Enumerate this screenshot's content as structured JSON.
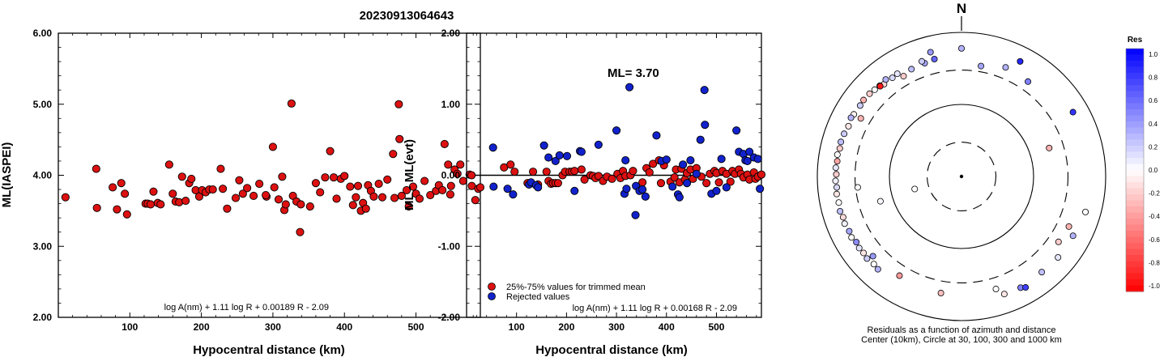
{
  "page_title": "20230913064643",
  "chart_data": [
    {
      "type": "scatter",
      "ylabel": "ML(IASPEI)",
      "xlabel": "Hypocentral distance (km)",
      "xlim": [
        0,
        590
      ],
      "ylim": [
        2.0,
        6.0
      ],
      "x_ticks": [
        100,
        200,
        300,
        400,
        500
      ],
      "y_ticks": [
        "2.00",
        "3.00",
        "4.00",
        "5.00",
        "6.00"
      ],
      "formula": "log A(nm) + 1.11 log R + 0.00189 R - 2.09",
      "marker_color": "#dd1111",
      "points": [
        [
          10,
          3.69
        ],
        [
          53,
          4.09
        ],
        [
          54,
          3.54
        ],
        [
          76,
          3.83
        ],
        [
          82,
          3.52
        ],
        [
          88,
          3.89
        ],
        [
          93,
          3.74
        ],
        [
          96,
          3.45
        ],
        [
          122,
          3.6
        ],
        [
          125,
          3.6
        ],
        [
          129,
          3.59
        ],
        [
          133,
          3.77
        ],
        [
          139,
          3.61
        ],
        [
          143,
          3.59
        ],
        [
          155,
          4.15
        ],
        [
          160,
          3.74
        ],
        [
          164,
          3.63
        ],
        [
          169,
          3.62
        ],
        [
          173,
          3.98
        ],
        [
          178,
          3.64
        ],
        [
          183,
          3.89
        ],
        [
          186,
          3.95
        ],
        [
          192,
          3.79
        ],
        [
          197,
          3.7
        ],
        [
          201,
          3.79
        ],
        [
          206,
          3.76
        ],
        [
          211,
          3.8
        ],
        [
          216,
          3.8
        ],
        [
          227,
          4.09
        ],
        [
          230,
          3.81
        ],
        [
          236,
          3.53
        ],
        [
          248,
          3.68
        ],
        [
          253,
          3.93
        ],
        [
          258,
          3.74
        ],
        [
          264,
          3.82
        ],
        [
          273,
          3.71
        ],
        [
          281,
          3.88
        ],
        [
          291,
          3.7
        ],
        [
          300,
          4.4
        ],
        [
          302,
          3.83
        ],
        [
          308,
          3.66
        ],
        [
          313,
          3.98
        ],
        [
          316,
          3.51
        ],
        [
          318,
          3.59
        ],
        [
          326,
          5.01
        ],
        [
          328,
          3.71
        ],
        [
          333,
          3.63
        ],
        [
          338,
          3.2
        ],
        [
          339,
          3.59
        ],
        [
          352,
          3.56
        ],
        [
          360,
          3.89
        ],
        [
          366,
          3.76
        ],
        [
          373,
          3.97
        ],
        [
          380,
          4.34
        ],
        [
          385,
          3.97
        ],
        [
          389,
          3.67
        ],
        [
          395,
          3.95
        ],
        [
          400,
          3.99
        ],
        [
          408,
          3.84
        ],
        [
          416,
          3.69
        ],
        [
          419,
          3.85
        ],
        [
          423,
          3.5
        ],
        [
          426,
          3.61
        ],
        [
          430,
          3.53
        ],
        [
          433,
          3.86
        ],
        [
          437,
          3.78
        ],
        [
          441,
          3.7
        ],
        [
          448,
          3.88
        ],
        [
          453,
          3.69
        ],
        [
          460,
          3.94
        ],
        [
          468,
          4.3
        ],
        [
          470,
          3.68
        ],
        [
          476,
          5.0
        ],
        [
          477,
          4.51
        ],
        [
          480,
          3.71
        ],
        [
          487,
          3.79
        ],
        [
          490,
          3.56
        ],
        [
          496,
          3.84
        ],
        [
          500,
          3.74
        ],
        [
          505,
          3.67
        ],
        [
          512,
          3.92
        ],
        [
          520,
          3.72
        ],
        [
          528,
          3.78
        ],
        [
          532,
          3.86
        ],
        [
          537,
          3.79
        ],
        [
          540,
          4.44
        ],
        [
          545,
          4.15
        ],
        [
          549,
          3.85
        ],
        [
          554,
          4.08
        ],
        [
          558,
          4.02
        ],
        [
          562,
          4.15
        ],
        [
          566,
          3.92
        ],
        [
          575,
          4.01
        ],
        [
          578,
          3.85
        ],
        [
          583,
          3.65
        ],
        [
          587,
          3.81
        ],
        [
          590,
          3.83
        ],
        [
          548,
          3.73
        ],
        [
          412,
          3.58
        ],
        [
          290,
          3.72
        ]
      ]
    },
    {
      "type": "scatter",
      "ylabel": "ML - ML(evt)",
      "xlabel": "Hypocentral distance (km)",
      "xlim": [
        0,
        590
      ],
      "ylim": [
        -2.0,
        2.0
      ],
      "x_ticks": [
        100,
        200,
        300,
        400,
        500
      ],
      "y_ticks": [
        "-2.00",
        "-1.00",
        "0.00",
        "1.00",
        "2.00"
      ],
      "annotation": "ML= 3.70",
      "legend": [
        "25%-75% values for trimmed mean",
        "Rejected values"
      ],
      "formula": "log A(nm) + 1.11 log R + 0.00168 R - 2.09",
      "zero_line": 0.0,
      "series": [
        {
          "name": "25%-75% values for trimmed mean",
          "color": "#dd1111",
          "points": [
            [
              10,
              0.0
            ],
            [
              75,
              0.11
            ],
            [
              88,
              0.15
            ],
            [
              96,
              0.05
            ],
            [
              122,
              -0.11
            ],
            [
              133,
              0.05
            ],
            [
              143,
              -0.13
            ],
            [
              160,
              0.05
            ],
            [
              164,
              -0.08
            ],
            [
              169,
              -0.12
            ],
            [
              173,
              -0.11
            ],
            [
              178,
              -0.11
            ],
            [
              183,
              -0.11
            ],
            [
              192,
              0.0
            ],
            [
              197,
              0.05
            ],
            [
              206,
              0.05
            ],
            [
              211,
              0.05
            ],
            [
              216,
              0.06
            ],
            [
              230,
              0.08
            ],
            [
              236,
              -0.06
            ],
            [
              248,
              0.0
            ],
            [
              253,
              -0.01
            ],
            [
              258,
              -0.04
            ],
            [
              264,
              -0.01
            ],
            [
              273,
              -0.08
            ],
            [
              281,
              -0.02
            ],
            [
              291,
              -0.05
            ],
            [
              302,
              0.02
            ],
            [
              308,
              -0.04
            ],
            [
              313,
              0.06
            ],
            [
              318,
              -0.01
            ],
            [
              328,
              0.0
            ],
            [
              333,
              0.06
            ],
            [
              352,
              -0.1
            ],
            [
              360,
              0.1
            ],
            [
              366,
              0.04
            ],
            [
              373,
              0.16
            ],
            [
              385,
              0.21
            ],
            [
              389,
              -0.11
            ],
            [
              395,
              0.14
            ],
            [
              408,
              -0.09
            ],
            [
              416,
              -0.03
            ],
            [
              419,
              0.08
            ],
            [
              426,
              -0.1
            ],
            [
              430,
              0.09
            ],
            [
              437,
              -0.06
            ],
            [
              441,
              0.03
            ],
            [
              448,
              0.08
            ],
            [
              453,
              -0.05
            ],
            [
              460,
              0.1
            ],
            [
              470,
              -0.02
            ],
            [
              480,
              -0.11
            ],
            [
              487,
              0.02
            ],
            [
              496,
              0.06
            ],
            [
              500,
              0.03
            ],
            [
              505,
              -0.1
            ],
            [
              512,
              0.06
            ],
            [
              520,
              0.02
            ],
            [
              528,
              -0.09
            ],
            [
              532,
              0.06
            ],
            [
              537,
              0.02
            ],
            [
              545,
              0.08
            ],
            [
              549,
              0.02
            ],
            [
              554,
              -0.03
            ],
            [
              562,
              0.01
            ],
            [
              566,
              -0.06
            ],
            [
              575,
              0.04
            ],
            [
              578,
              -0.05
            ],
            [
              583,
              -0.02
            ],
            [
              590,
              0.01
            ]
          ]
        },
        {
          "name": "Rejected values",
          "color": "#1122cc",
          "points": [
            [
              53,
              0.39
            ],
            [
              54,
              -0.16
            ],
            [
              82,
              -0.19
            ],
            [
              93,
              -0.27
            ],
            [
              125,
              -0.13
            ],
            [
              129,
              -0.1
            ],
            [
              139,
              -0.14
            ],
            [
              143,
              -0.17
            ],
            [
              155,
              0.42
            ],
            [
              164,
              0.25
            ],
            [
              178,
              0.2
            ],
            [
              186,
              0.28
            ],
            [
              201,
              0.27
            ],
            [
              216,
              -0.22
            ],
            [
              227,
              0.34
            ],
            [
              230,
              0.33
            ],
            [
              264,
              0.43
            ],
            [
              300,
              0.63
            ],
            [
              316,
              -0.26
            ],
            [
              318,
              0.21
            ],
            [
              320,
              -0.19
            ],
            [
              326,
              1.24
            ],
            [
              338,
              -0.56
            ],
            [
              339,
              -0.15
            ],
            [
              346,
              -0.22
            ],
            [
              352,
              -0.2
            ],
            [
              358,
              -0.3
            ],
            [
              380,
              0.56
            ],
            [
              390,
              0.2
            ],
            [
              400,
              0.22
            ],
            [
              412,
              -0.16
            ],
            [
              423,
              -0.27
            ],
            [
              426,
              -0.31
            ],
            [
              433,
              0.15
            ],
            [
              441,
              -0.11
            ],
            [
              448,
              0.21
            ],
            [
              460,
              0.02
            ],
            [
              468,
              0.5
            ],
            [
              476,
              1.2
            ],
            [
              477,
              0.71
            ],
            [
              490,
              -0.26
            ],
            [
              510,
              0.23
            ],
            [
              540,
              0.63
            ],
            [
              545,
              0.33
            ],
            [
              554,
              0.3
            ],
            [
              558,
              0.21
            ],
            [
              562,
              0.2
            ],
            [
              566,
              0.33
            ],
            [
              575,
              0.25
            ],
            [
              583,
              0.23
            ],
            [
              587,
              -0.19
            ],
            [
              500,
              -0.22
            ],
            [
              520,
              -0.17
            ]
          ]
        }
      ]
    },
    {
      "type": "polar-scatter",
      "north_label": "N",
      "caption_line1": "Residuals as a function of azimuth and distance",
      "caption_line2": "Center (10km), Circle at 30, 100, 300 and 1000 km",
      "circles_km": [
        30,
        100,
        300,
        1000
      ],
      "colorbar": {
        "title": "Res",
        "ticks": [
          "1.0",
          "0.8",
          "0.6",
          "0.4",
          "0.2",
          "0.0",
          "-0.2",
          "-0.4",
          "-0.6",
          "-0.8",
          "-1.0"
        ],
        "max_color": "#0000ff",
        "zero_color": "#ffffff",
        "min_color": "#ff0000"
      },
      "points": [
        [
          255,
          47,
          0.0
        ],
        [
          253,
          150,
          0.03
        ],
        [
          72,
          190,
          -0.3
        ],
        [
          10,
          360,
          0.35
        ],
        [
          35,
          405,
          0.5
        ],
        [
          22,
          430,
          0.3
        ],
        [
          335,
          440,
          0.25
        ],
        [
          342,
          450,
          0.35
        ],
        [
          347,
          470,
          0.6
        ],
        [
          341,
          490,
          0.2
        ],
        [
          328,
          480,
          0.1
        ],
        [
          320,
          470,
          -0.15
        ],
        [
          318,
          495,
          0.15
        ],
        [
          322,
          510,
          0.3
        ],
        [
          315,
          505,
          0.0
        ],
        [
          312,
          520,
          -0.2
        ],
        [
          308,
          530,
          -0.3
        ],
        [
          305,
          520,
          0.2
        ],
        [
          300,
          530,
          -0.05
        ],
        [
          298,
          545,
          0.3
        ],
        [
          294,
          520,
          -0.1
        ],
        [
          290,
          540,
          0.2
        ],
        [
          286,
          550,
          0.25
        ],
        [
          283,
          540,
          -0.2
        ],
        [
          280,
          560,
          0.0
        ],
        [
          277,
          545,
          -0.35
        ],
        [
          274,
          560,
          0.1
        ],
        [
          271,
          545,
          -0.2
        ],
        [
          268,
          560,
          0.05
        ],
        [
          265,
          545,
          0.15
        ],
        [
          262,
          560,
          -0.1
        ],
        [
          258,
          550,
          0.0
        ],
        [
          254,
          565,
          0.25
        ],
        [
          251,
          545,
          -0.15
        ],
        [
          248,
          560,
          0.05
        ],
        [
          244,
          540,
          0.35
        ],
        [
          241,
          555,
          0.0
        ],
        [
          238,
          525,
          0.45
        ],
        [
          235,
          540,
          0.1
        ],
        [
          232,
          530,
          -0.1
        ],
        [
          229,
          545,
          0.2
        ],
        [
          225,
          525,
          0.0
        ],
        [
          222,
          540,
          0.3
        ],
        [
          346,
          600,
          0.4
        ],
        [
          360,
          600,
          0.3
        ],
        [
          27,
          620,
          0.85
        ],
        [
          60,
          610,
          0.8
        ],
        [
          106,
          615,
          0.0
        ],
        [
          118,
          565,
          0.3
        ],
        [
          130,
          560,
          0.1
        ],
        [
          140,
          540,
          0.25
        ],
        [
          152,
          560,
          0.5
        ],
        [
          160,
          545,
          -0.1
        ],
        [
          163,
          430,
          0.0
        ],
        [
          190,
          440,
          -0.25
        ],
        [
          212,
          420,
          -0.4
        ],
        [
          228,
          450,
          0.4
        ],
        [
          300,
          410,
          -0.3
        ],
        [
          330,
          405,
          -0.2
        ],
        [
          150,
          600,
          0.75
        ],
        [
          318,
          485,
          -0.9
        ],
        [
          325,
          470,
          0.15
        ],
        [
          264,
          280,
          0.0
        ],
        [
          115,
          440,
          -0.3
        ],
        [
          124,
          420,
          -0.2
        ]
      ]
    }
  ]
}
